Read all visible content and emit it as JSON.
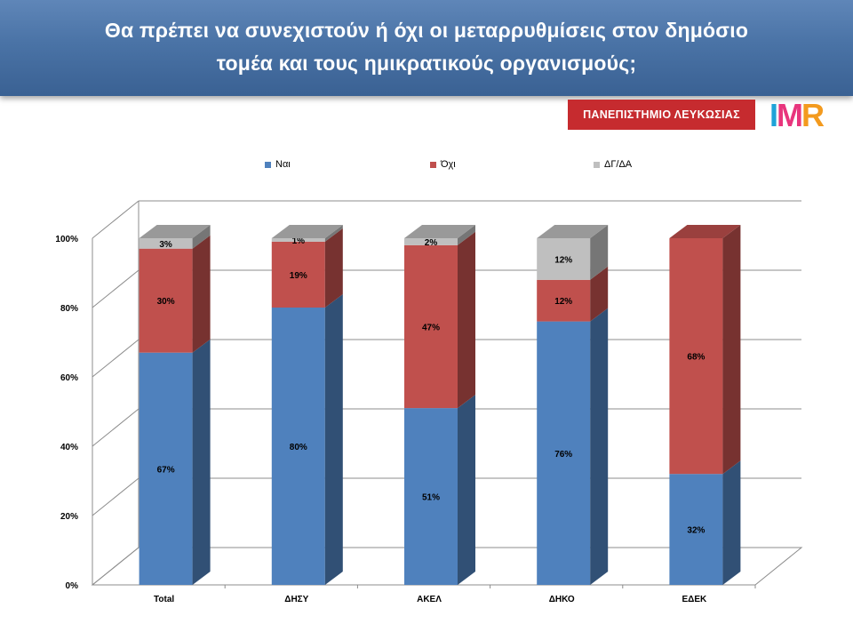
{
  "slide": {
    "title_line1": "Θα πρέπει να συνεχιστούν ή όχι οι μεταρρυθμίσεις στον δημόσιο",
    "title_line2": "τομέα και τους ημικρατικούς οργανισμούς;",
    "university_logo_text": "ΠΑΝΕΠΙΣΤΗΜΙΟ ΛΕΥΚΩΣΙΑΣ",
    "imr_logo_text": "IMR"
  },
  "colors": {
    "header": "#4a73a6",
    "nai": "#4f81bd",
    "oxi": "#c0504d",
    "dgda": "#bfbfbf",
    "university_red": "#c62b2f"
  },
  "chart_data": {
    "type": "bar",
    "stacked": true,
    "three_d": true,
    "categories": [
      "Total",
      "ΔΗΣΥ",
      "ΑΚΕΛ",
      "ΔΗΚΟ",
      "ΕΔΕΚ"
    ],
    "series": [
      {
        "name": "Ναι",
        "values": [
          67,
          80,
          51,
          76,
          32
        ],
        "labels": [
          "67%",
          "80%",
          "51%",
          "76%",
          "32%"
        ]
      },
      {
        "name": "Όχι",
        "values": [
          30,
          19,
          47,
          12,
          68
        ],
        "labels": [
          "30%",
          "19%",
          "47%",
          "12%",
          "68%"
        ]
      },
      {
        "name": "ΔΓ/ΔΑ",
        "values": [
          3,
          1,
          2,
          12,
          0
        ],
        "labels": [
          "3%",
          "1%",
          "2%",
          "12%",
          ""
        ]
      }
    ],
    "ylim": [
      0,
      100
    ],
    "y_ticks": [
      "0%",
      "20%",
      "40%",
      "60%",
      "80%",
      "100%"
    ],
    "legend": "top",
    "grid": true
  }
}
